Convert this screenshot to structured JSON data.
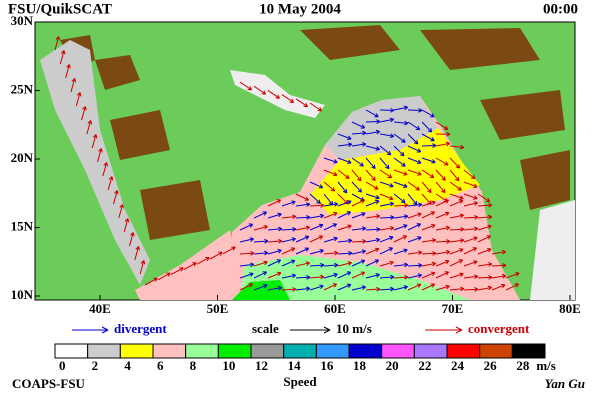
{
  "header": {
    "left": "FSU/QuikSCAT",
    "center": "10 May 2004",
    "right": "00:00"
  },
  "map": {
    "lat_labels": [
      "30N",
      "25N",
      "20N",
      "15N",
      "10N"
    ],
    "lon_labels": [
      "40E",
      "50E",
      "60E",
      "70E",
      "80E"
    ]
  },
  "legend": {
    "divergent": "divergent",
    "scale": "scale",
    "scale_value": "10 m/s",
    "convergent": "convergent"
  },
  "colorbar": {
    "ticks": [
      0,
      2,
      4,
      6,
      8,
      10,
      12,
      14,
      16,
      18,
      20,
      22,
      24,
      26,
      28
    ],
    "unit": "m/s",
    "label": "Speed",
    "colors": [
      "#ffffff",
      "#cccccc",
      "#ffff00",
      "#ffc0c0",
      "#99ff99",
      "#00ee00",
      "#999999",
      "#00b0b0",
      "#3399ff",
      "#0000cc",
      "#ff55ff",
      "#aa77ff",
      "#ff0000",
      "#cc4400",
      "#000000"
    ]
  },
  "footer": {
    "left": "COAPS-FSU",
    "right": "Yan Gu"
  }
}
